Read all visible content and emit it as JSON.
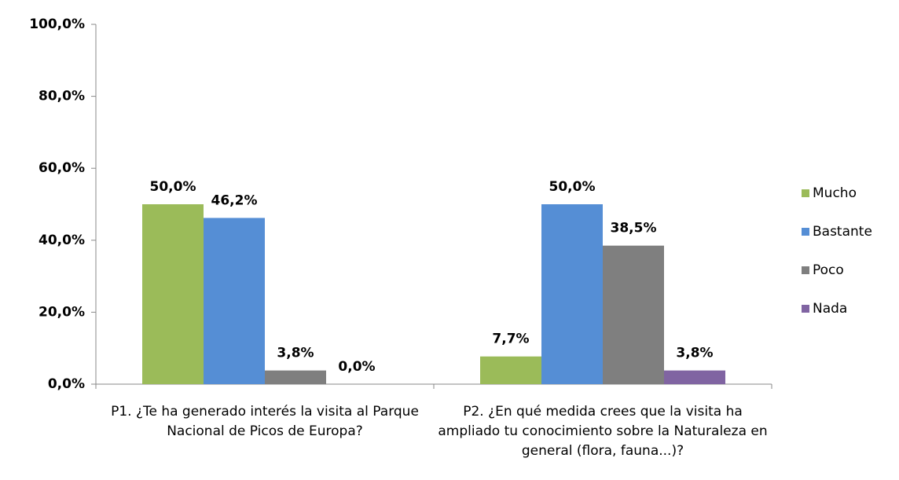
{
  "chart_data": {
    "type": "bar",
    "categories": [
      "P1. ¿Te ha generado interés la visita al Parque Nacional de Picos de Europa?",
      "P2. ¿En qué medida crees que la visita ha ampliado tu conocimiento sobre la Naturaleza en general (flora, fauna...)?"
    ],
    "series": [
      {
        "name": "Mucho",
        "color": "#9bbb59",
        "values": [
          50.0,
          7.7
        ],
        "value_labels": [
          "50,0%",
          "7,7%"
        ]
      },
      {
        "name": "Bastante",
        "color": "#558ed5",
        "values": [
          46.2,
          50.0
        ],
        "value_labels": [
          "46,2%",
          "50,0%"
        ]
      },
      {
        "name": "Poco",
        "color": "#7f7f7f",
        "values": [
          3.8,
          38.5
        ],
        "value_labels": [
          "3,8%",
          "38,5%"
        ]
      },
      {
        "name": "Nada",
        "color": "#8064a2",
        "values": [
          0.0,
          3.8
        ],
        "value_labels": [
          "0,0%",
          "3,8%"
        ]
      }
    ],
    "ylim": [
      0,
      100
    ],
    "yticks": [
      {
        "value": 0,
        "label": "0,0%"
      },
      {
        "value": 20,
        "label": "20,0%"
      },
      {
        "value": 40,
        "label": "40,0%"
      },
      {
        "value": 60,
        "label": "60,0%"
      },
      {
        "value": 80,
        "label": "80,0%"
      },
      {
        "value": 100,
        "label": "100,0%"
      }
    ],
    "grid": false,
    "legend": "right"
  }
}
